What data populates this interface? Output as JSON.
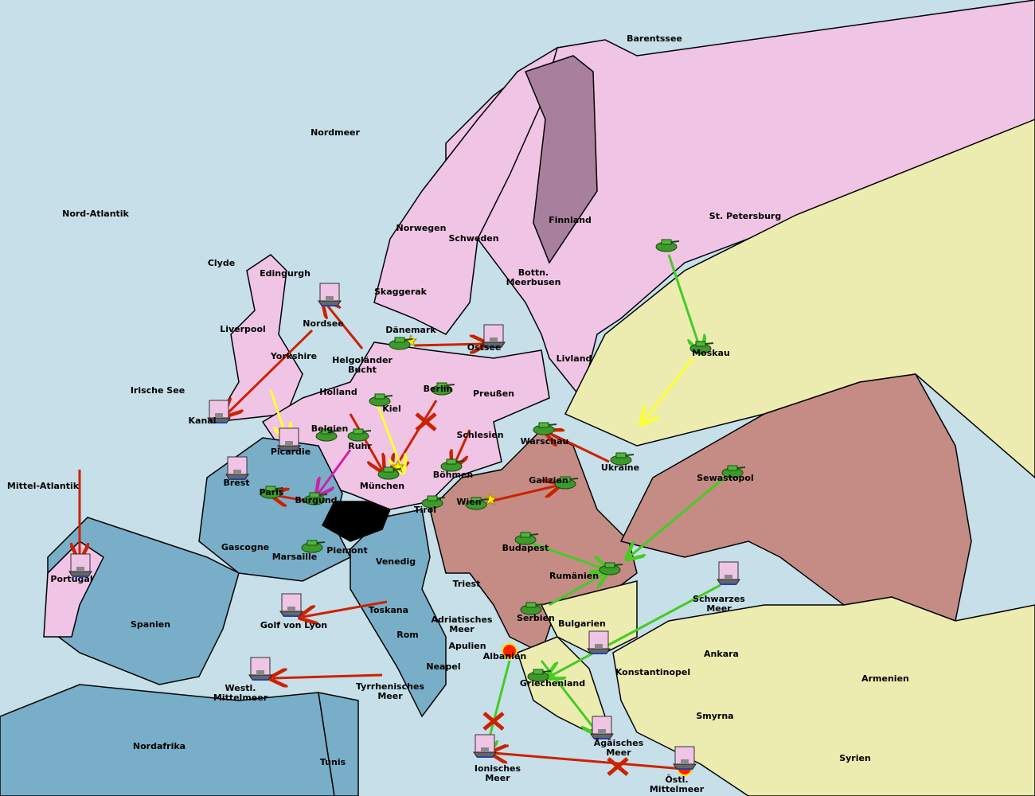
{
  "colors": {
    "sea": "#c6dfe9",
    "england_germany_russia": "#f0c4e4",
    "finland": "#a97f9e",
    "austria": "#c48c84",
    "france_italy_spain": "#79aec8",
    "turkey_neutral": "#ececb0",
    "switzerland": "#000000",
    "move_order": "#cc2200",
    "support_order": "#ffff33",
    "russia_order": "#44cc22",
    "convoy_order": "#cc22aa"
  },
  "labels": {
    "sea": [
      "Barentssee",
      "Nordmeer",
      "Nord-Atlantik",
      "Irische See",
      "Mittel-Atlantik",
      "Nordsee",
      "Helgoländer Bucht",
      "Skaggerak",
      "Ostsee",
      "Bottn. Meerbusen",
      "Kanal",
      "Golf von Lyon",
      "Westl. Mittelmeer",
      "Tyrrhenisches Meer",
      "Adriatisches Meer",
      "Ionisches Meer",
      "Ägäisches Meer",
      "Östl. Mittelmeer",
      "Schwarzes Meer"
    ],
    "land": [
      "Clyde",
      "Edingurgh",
      "Liverpool",
      "Yorkshire",
      "Norwegen",
      "Schweden",
      "Finnland",
      "St. Petersburg",
      "Dänemark",
      "Holland",
      "Belgien",
      "Kiel",
      "Berlin",
      "Preußen",
      "Livland",
      "Moskau",
      "Ruhr",
      "Picardie",
      "Brest",
      "Paris",
      "Burgund",
      "München",
      "Schlesien",
      "Böhmen",
      "Warschau",
      "Ukraine",
      "Galizien",
      "Sewastopol",
      "Tirol",
      "Wien",
      "Budapest",
      "Gascogne",
      "Marsaille",
      "Piemont",
      "Venedig",
      "Triest",
      "Rumänien",
      "Serbien",
      "Bulgarien",
      "Portugal",
      "Spanien",
      "Toskana",
      "Rom",
      "Apulien",
      "Neapel",
      "Albanien",
      "Griechenland",
      "Konstantinopel",
      "Ankara",
      "Armenien",
      "Smyrna",
      "Syrien",
      "Nordafrika",
      "Tunis"
    ]
  },
  "units": [
    {
      "type": "army",
      "province": "Dänemark"
    },
    {
      "type": "fleet",
      "province": "Ostsee"
    },
    {
      "type": "fleet",
      "province": "Nordsee"
    },
    {
      "type": "fleet",
      "province": "Kanal"
    },
    {
      "type": "fleet",
      "province": "Brest"
    },
    {
      "type": "army",
      "province": "Paris"
    },
    {
      "type": "army",
      "province": "Burgund"
    },
    {
      "type": "army",
      "province": "Belgien"
    },
    {
      "type": "army",
      "province": "Ruhr"
    },
    {
      "type": "army",
      "province": "Kiel"
    },
    {
      "type": "army",
      "province": "Berlin"
    },
    {
      "type": "army",
      "province": "München"
    },
    {
      "type": "army",
      "province": "Böhmen"
    },
    {
      "type": "army",
      "province": "Tirol"
    },
    {
      "type": "fleet",
      "province": "Picardie"
    },
    {
      "type": "army",
      "province": "Warschau"
    },
    {
      "type": "army",
      "province": "Ukraine"
    },
    {
      "type": "army",
      "province": "Moskau"
    },
    {
      "type": "army",
      "province": "St. Petersburg"
    },
    {
      "type": "army",
      "province": "Sewastopol"
    },
    {
      "type": "army",
      "province": "Galizien"
    },
    {
      "type": "army",
      "province": "Wien"
    },
    {
      "type": "army",
      "province": "Budapest"
    },
    {
      "type": "army",
      "province": "Rumänien"
    },
    {
      "type": "army",
      "province": "Serbien"
    },
    {
      "type": "army",
      "province": "Griechenland"
    },
    {
      "type": "army",
      "province": "Piemont"
    },
    {
      "type": "fleet",
      "province": "Golf von Lyon"
    },
    {
      "type": "fleet",
      "province": "Westl. Mittelmeer"
    },
    {
      "type": "fleet",
      "province": "Portugal"
    },
    {
      "type": "fleet",
      "province": "Ionisches Meer"
    },
    {
      "type": "fleet",
      "province": "Ägäisches Meer"
    },
    {
      "type": "fleet",
      "province": "Östl. Mittelmeer"
    },
    {
      "type": "fleet",
      "province": "Schwarzes Meer"
    },
    {
      "type": "fleet",
      "province": "Bulgarien"
    }
  ]
}
